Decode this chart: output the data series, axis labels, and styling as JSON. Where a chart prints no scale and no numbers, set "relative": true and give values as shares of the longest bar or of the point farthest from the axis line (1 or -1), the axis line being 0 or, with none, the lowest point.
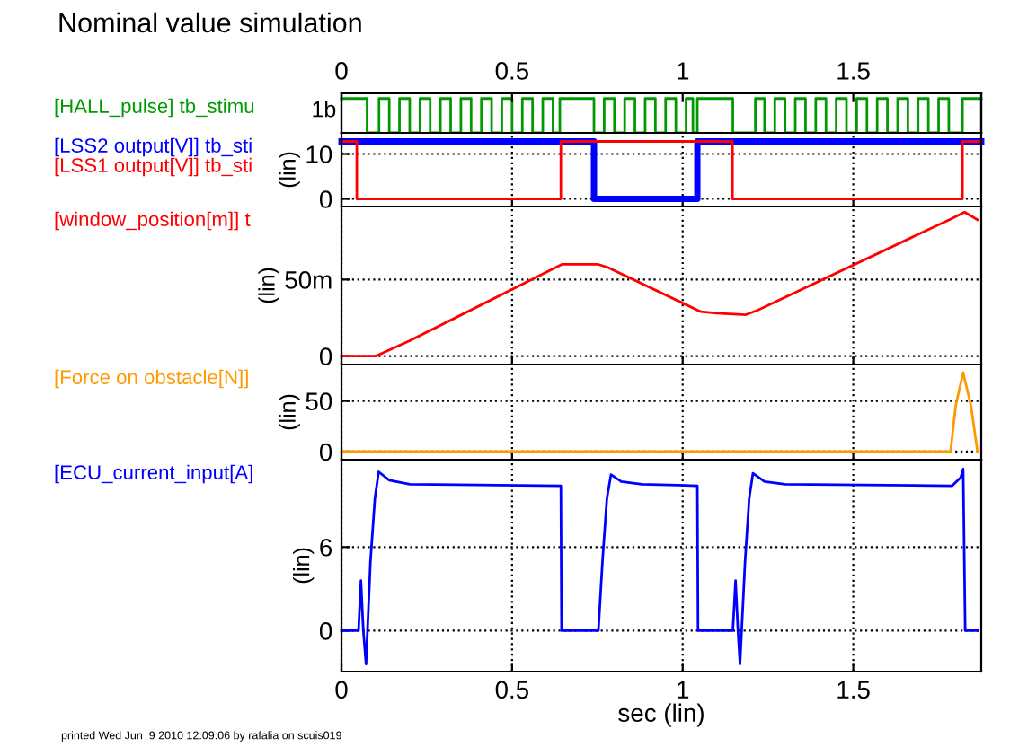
{
  "chart_data": [
    {
      "type": "step",
      "title": "Nominal value simulation",
      "relative": true,
      "xlim": [
        0,
        1.875
      ],
      "x2lim": [
        0,
        1.875
      ],
      "x2ticks": [
        0,
        0.5,
        1,
        1.5
      ],
      "tick_labels": false,
      "grid": false,
      "annotations": [
        "1b"
      ],
      "series": [
        {
          "name": "[HALL_pulse] tb_stimu",
          "color": "#009900",
          "x": [
            0,
            0.075,
            0.11,
            0.14,
            0.17,
            0.2,
            0.23,
            0.26,
            0.29,
            0.32,
            0.35,
            0.38,
            0.41,
            0.44,
            0.47,
            0.5,
            0.53,
            0.56,
            0.59,
            0.62,
            0.64,
            0.74,
            0.77,
            0.8,
            0.83,
            0.86,
            0.89,
            0.92,
            0.95,
            0.98,
            1.01,
            1.03,
            1.043,
            1.147,
            1.213,
            1.24,
            1.27,
            1.3,
            1.33,
            1.36,
            1.39,
            1.42,
            1.45,
            1.48,
            1.51,
            1.54,
            1.57,
            1.6,
            1.63,
            1.66,
            1.69,
            1.72,
            1.75,
            1.78,
            1.82,
            1.875
          ],
          "values": [
            1,
            0,
            1,
            0,
            1,
            0,
            1,
            0,
            1,
            0,
            1,
            0,
            1,
            0,
            1,
            0,
            1,
            0,
            1,
            0,
            1,
            0,
            1,
            0,
            1,
            0,
            1,
            0,
            1,
            0,
            1,
            0,
            1,
            0,
            1,
            0,
            1,
            0,
            1,
            0,
            1,
            0,
            1,
            0,
            1,
            0,
            1,
            0,
            1,
            0,
            1,
            0,
            1,
            0,
            1,
            1
          ]
        }
      ]
    },
    {
      "type": "step",
      "ylabel": "(lin)",
      "xlim": [
        0,
        1.875
      ],
      "xticks": [
        0,
        0.5,
        1,
        1.5
      ],
      "ylim": [
        -1.7,
        14.7
      ],
      "yticks": [
        0,
        10
      ],
      "tick_labels": "y",
      "grid": true,
      "series": [
        {
          "name": "[LSS2 output[V]] tb_sti",
          "color": "#0000ff",
          "x": [
            0,
            0.74,
            1.043,
            1.875
          ],
          "values": [
            12.8,
            0,
            12.8,
            12.8
          ]
        },
        {
          "name": "[LSS1 output[V]] tb_sti",
          "color": "#ff0000",
          "x": [
            0,
            0.045,
            0.643,
            1.146,
            1.82,
            1.875
          ],
          "values": [
            12.8,
            0,
            12.8,
            0,
            12.8,
            12.8
          ]
        }
      ]
    },
    {
      "type": "line",
      "ylabel": "(lin)",
      "xlim": [
        0,
        1.875
      ],
      "xticks": [
        0,
        0.5,
        1,
        1.5
      ],
      "ylim": [
        -5.5,
        97.7
      ],
      "yticks": [
        0,
        {
          "value": 50,
          "label": "50m"
        }
      ],
      "tick_labels": "y",
      "grid": true,
      "series": [
        {
          "name": "[window_position[m]] t",
          "color": "#ff0000",
          "x": [
            0,
            0.1,
            0.11,
            0.2,
            0.647,
            0.7,
            0.751,
            0.78,
            1.053,
            1.1,
            1.185,
            1.22,
            1.79,
            1.826,
            1.864
          ],
          "values": [
            0,
            0,
            1,
            10,
            60,
            60,
            60,
            58,
            29,
            28,
            27,
            30,
            90,
            94,
            89
          ]
        }
      ]
    },
    {
      "type": "line",
      "ylabel": "(lin)",
      "xlim": [
        0,
        1.875
      ],
      "xticks": [
        0,
        0.5,
        1,
        1.5
      ],
      "ylim": [
        -8,
        86
      ],
      "yticks": [
        0,
        50
      ],
      "tick_labels": "y",
      "grid": true,
      "series": [
        {
          "name": "[Force on obstacle[N]]",
          "color": "#ff9900",
          "x": [
            0,
            1.785,
            1.8,
            1.822,
            1.845,
            1.864
          ],
          "values": [
            0,
            0,
            45,
            78,
            45,
            0
          ]
        }
      ]
    },
    {
      "type": "line",
      "ylabel": "(lin)",
      "xlabel": "sec (lin)",
      "xlim": [
        0,
        1.875
      ],
      "xticks": [
        0,
        0.5,
        1,
        1.5
      ],
      "ylim": [
        -2.94,
        12.27
      ],
      "yticks": [
        0,
        6
      ],
      "grid": true,
      "annotations": [
        "printed Wed Jun  9 2010 12:09:06 by rafalia on scuis019"
      ],
      "series": [
        {
          "name": "[ECU_current_input[A]",
          "color": "#0000ff",
          "x": [
            0,
            0.05,
            0.057,
            0.064,
            0.072,
            0.085,
            0.098,
            0.109,
            0.14,
            0.2,
            0.643,
            0.645,
            0.753,
            0.765,
            0.778,
            0.79,
            0.82,
            0.88,
            1.043,
            1.045,
            1.147,
            1.155,
            1.162,
            1.168,
            1.183,
            1.195,
            1.206,
            1.24,
            1.3,
            1.79,
            1.815,
            1.822,
            1.828,
            1.864
          ],
          "values": [
            0,
            0,
            3.6,
            0,
            -2.4,
            5,
            9.5,
            11.4,
            10.8,
            10.5,
            10.4,
            0,
            0,
            5,
            9.5,
            11.2,
            10.7,
            10.5,
            10.4,
            0,
            0,
            3.6,
            0,
            -2.4,
            5,
            9.5,
            11.3,
            10.7,
            10.5,
            10.4,
            11,
            11.6,
            0,
            0
          ]
        }
      ]
    }
  ]
}
